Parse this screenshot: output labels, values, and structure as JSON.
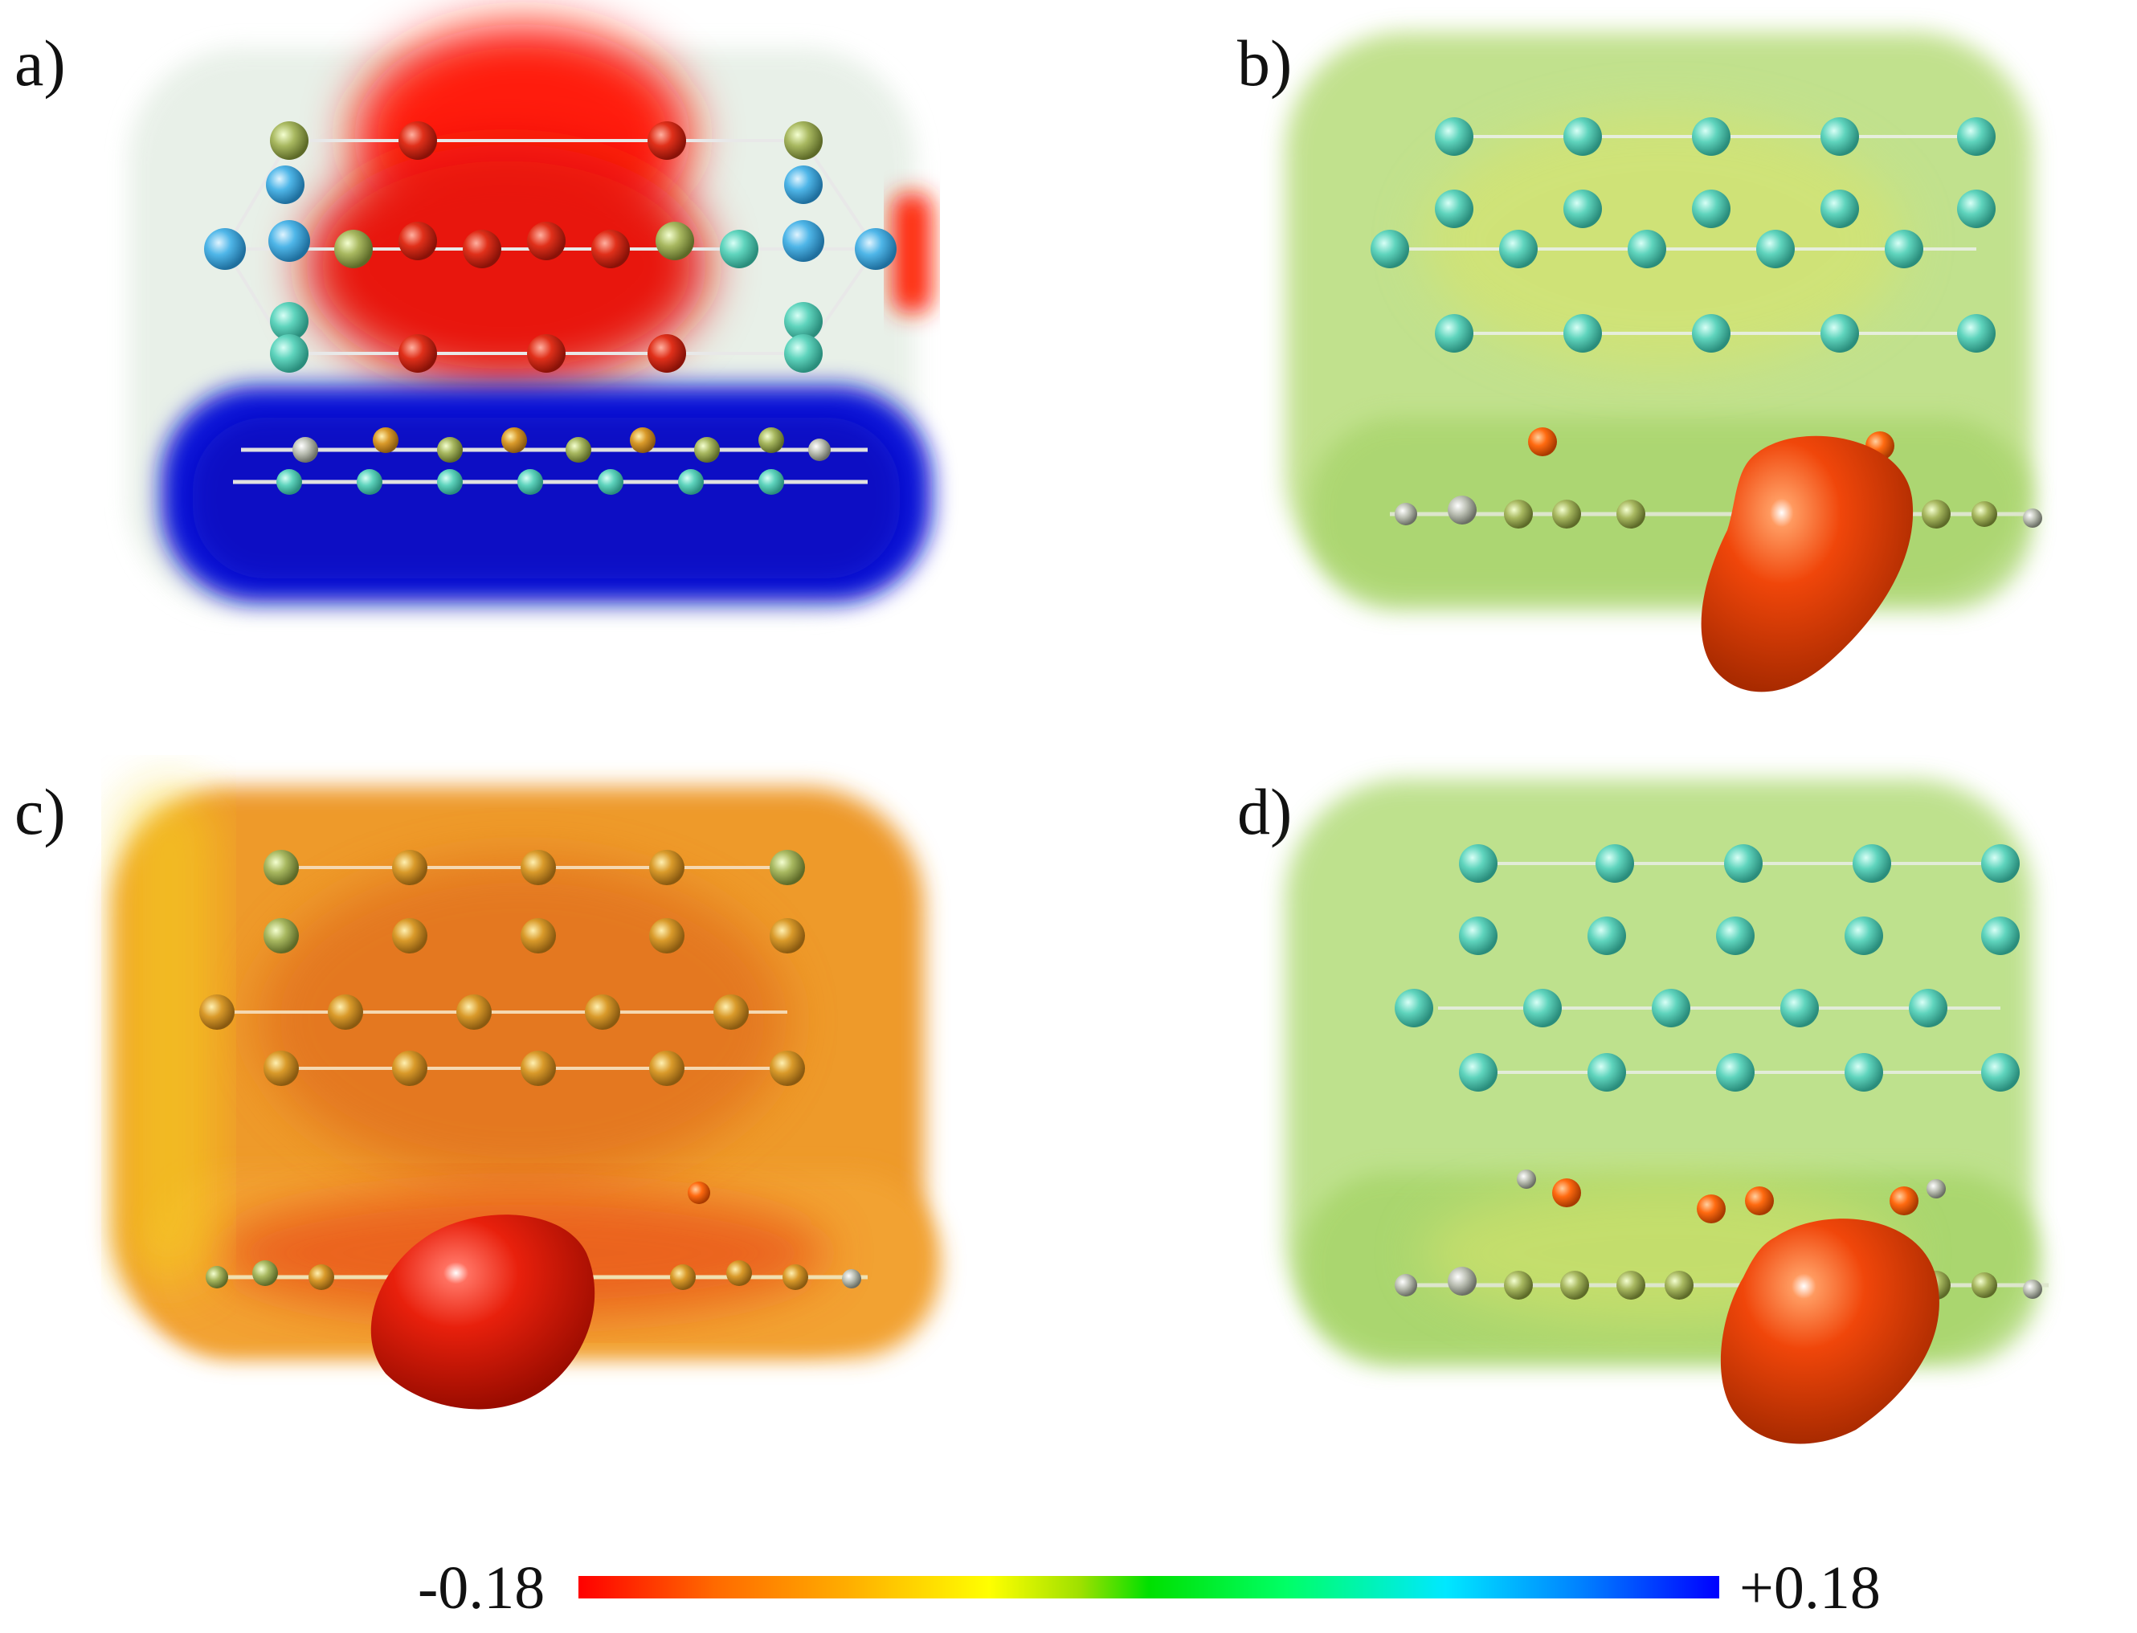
{
  "panels": [
    {
      "label": "a)"
    },
    {
      "label": "b)"
    },
    {
      "label": "c)"
    },
    {
      "label": "d)"
    }
  ],
  "colorbar": {
    "min_label": "-0.18",
    "max_label": "+0.18",
    "colors": [
      "#ff0000",
      "#ffff00",
      "#00e000",
      "#00e8ff",
      "#0000ff"
    ]
  }
}
